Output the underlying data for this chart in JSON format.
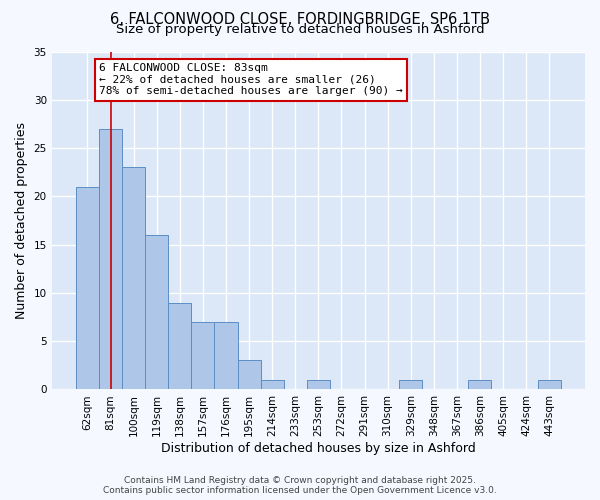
{
  "title_line1": "6, FALCONWOOD CLOSE, FORDINGBRIDGE, SP6 1TB",
  "title_line2": "Size of property relative to detached houses in Ashford",
  "xlabel": "Distribution of detached houses by size in Ashford",
  "ylabel": "Number of detached properties",
  "bar_values": [
    21,
    27,
    23,
    16,
    9,
    7,
    7,
    3,
    1,
    0,
    1,
    0,
    0,
    0,
    1,
    0,
    0,
    1,
    0,
    0,
    1
  ],
  "bin_labels": [
    "62sqm",
    "81sqm",
    "100sqm",
    "119sqm",
    "138sqm",
    "157sqm",
    "176sqm",
    "195sqm",
    "214sqm",
    "233sqm",
    "253sqm",
    "272sqm",
    "291sqm",
    "310sqm",
    "329sqm",
    "348sqm",
    "367sqm",
    "386sqm",
    "405sqm",
    "424sqm",
    "443sqm"
  ],
  "bar_color": "#aec6e8",
  "bar_edge_color": "#5b8ec4",
  "background_color": "#dce8f8",
  "fig_background_color": "#f5f8ff",
  "grid_color": "#ffffff",
  "red_line_x": 1,
  "annotation_line1": "6 FALCONWOOD CLOSE: 83sqm",
  "annotation_line2": "← 22% of detached houses are smaller (26)",
  "annotation_line3": "78% of semi-detached houses are larger (90) →",
  "annotation_box_color": "#ffffff",
  "annotation_box_edge_color": "#cc0000",
  "annotation_text_color": "#000000",
  "red_line_color": "#cc0000",
  "ylim": [
    0,
    35
  ],
  "yticks": [
    0,
    5,
    10,
    15,
    20,
    25,
    30,
    35
  ],
  "footer_text": "Contains HM Land Registry data © Crown copyright and database right 2025.\nContains public sector information licensed under the Open Government Licence v3.0.",
  "title_fontsize": 10.5,
  "subtitle_fontsize": 9.5,
  "axis_label_fontsize": 9,
  "tick_fontsize": 7.5,
  "annotation_fontsize": 8,
  "footer_fontsize": 6.5
}
